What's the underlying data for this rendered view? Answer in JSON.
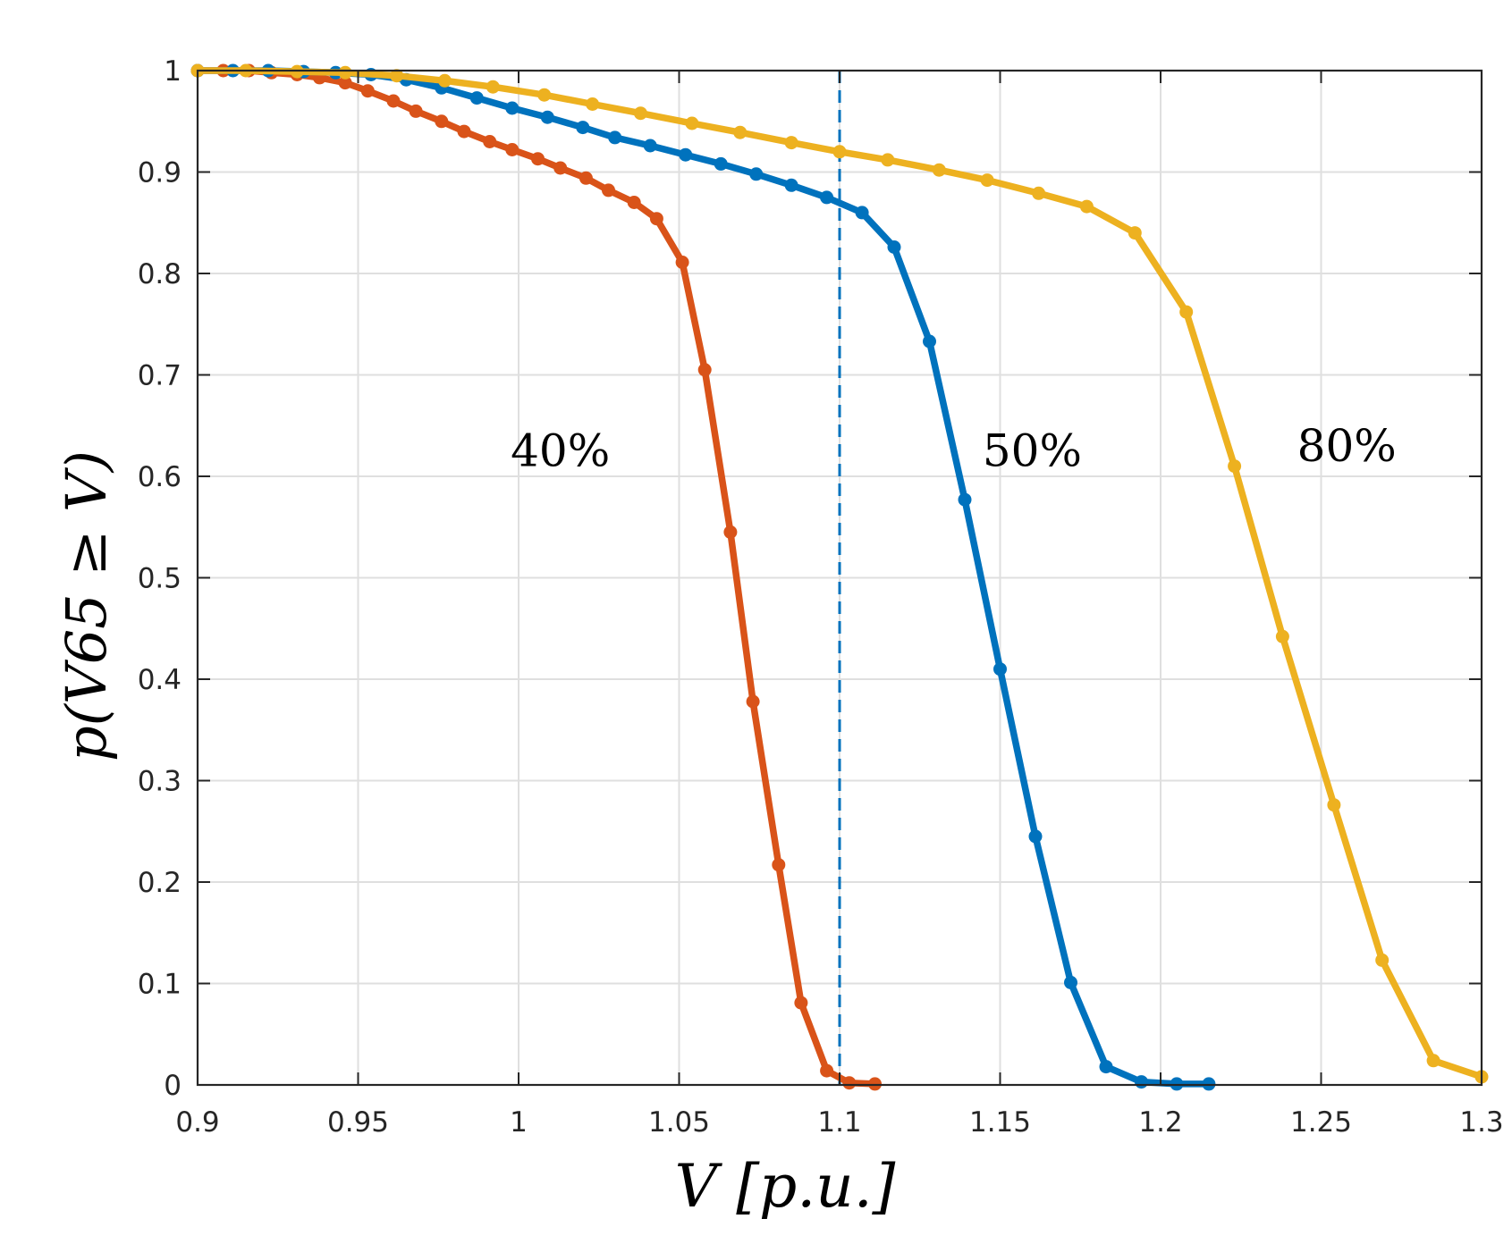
{
  "chart_data": {
    "type": "line",
    "title": "",
    "xlabel": "V [p.u.]",
    "ylabel": "p(V65 ≥ V)",
    "xlim": [
      0.9,
      1.3
    ],
    "ylim": [
      0,
      1
    ],
    "grid": true,
    "xticks": [
      0.9,
      0.95,
      1,
      1.05,
      1.1,
      1.15,
      1.2,
      1.25,
      1.3
    ],
    "xtick_labels": [
      "0.9",
      "0.95",
      "1",
      "1.05",
      "1.1",
      "1.15",
      "1.2",
      "1.25",
      "1.3"
    ],
    "yticks": [
      0,
      0.1,
      0.2,
      0.3,
      0.4,
      0.5,
      0.6,
      0.7,
      0.8,
      0.9,
      1
    ],
    "ytick_labels": [
      "0",
      "0.1",
      "0.2",
      "0.3",
      "0.4",
      "0.5",
      "0.6",
      "0.7",
      "0.8",
      "0.9",
      "1"
    ],
    "reference_line": {
      "orientation": "vertical",
      "x": 1.1,
      "style": "dashed",
      "color": "#0072bd"
    },
    "series": [
      {
        "name": "40%",
        "color": "#d95319",
        "label_pos": {
          "x": 1.013,
          "y": 0.61
        },
        "x": [
          0.9,
          0.908,
          0.916,
          0.923,
          0.931,
          0.938,
          0.946,
          0.953,
          0.961,
          0.968,
          0.976,
          0.983,
          0.991,
          0.998,
          1.006,
          1.013,
          1.021,
          1.028,
          1.036,
          1.043,
          1.051,
          1.058,
          1.066,
          1.073,
          1.081,
          1.088,
          1.096,
          1.103,
          1.111
        ],
        "y": [
          1.0,
          1.0,
          1.0,
          0.998,
          0.996,
          0.993,
          0.988,
          0.98,
          0.97,
          0.96,
          0.95,
          0.94,
          0.93,
          0.922,
          0.913,
          0.904,
          0.894,
          0.882,
          0.87,
          0.854,
          0.811,
          0.705,
          0.545,
          0.378,
          0.217,
          0.081,
          0.014,
          0.002,
          0.001
        ]
      },
      {
        "name": "50%",
        "color": "#0072bd",
        "label_pos": {
          "x": 1.16,
          "y": 0.61
        },
        "x": [
          0.9,
          0.911,
          0.922,
          0.933,
          0.943,
          0.954,
          0.965,
          0.976,
          0.987,
          0.998,
          1.009,
          1.02,
          1.03,
          1.041,
          1.052,
          1.063,
          1.074,
          1.085,
          1.096,
          1.107,
          1.117,
          1.128,
          1.139,
          1.15,
          1.161,
          1.172,
          1.183,
          1.194,
          1.205,
          1.215
        ],
        "y": [
          1.0,
          1.0,
          1.0,
          0.999,
          0.998,
          0.996,
          0.991,
          0.983,
          0.973,
          0.963,
          0.954,
          0.944,
          0.934,
          0.926,
          0.917,
          0.908,
          0.898,
          0.887,
          0.875,
          0.86,
          0.826,
          0.733,
          0.577,
          0.41,
          0.245,
          0.101,
          0.018,
          0.003,
          0.001,
          0.001
        ]
      },
      {
        "name": "80%",
        "color": "#edb120",
        "label_pos": {
          "x": 1.258,
          "y": 0.615
        },
        "x": [
          0.9,
          0.915,
          0.931,
          0.946,
          0.962,
          0.977,
          0.992,
          1.008,
          1.023,
          1.038,
          1.054,
          1.069,
          1.085,
          1.1,
          1.115,
          1.131,
          1.146,
          1.162,
          1.177,
          1.192,
          1.208,
          1.223,
          1.238,
          1.254,
          1.269,
          1.285,
          1.3
        ],
        "y": [
          1.0,
          1.0,
          0.999,
          0.998,
          0.995,
          0.99,
          0.984,
          0.976,
          0.967,
          0.958,
          0.948,
          0.939,
          0.929,
          0.92,
          0.912,
          0.902,
          0.892,
          0.879,
          0.866,
          0.84,
          0.762,
          0.61,
          0.442,
          0.276,
          0.123,
          0.024,
          0.008
        ]
      }
    ]
  }
}
